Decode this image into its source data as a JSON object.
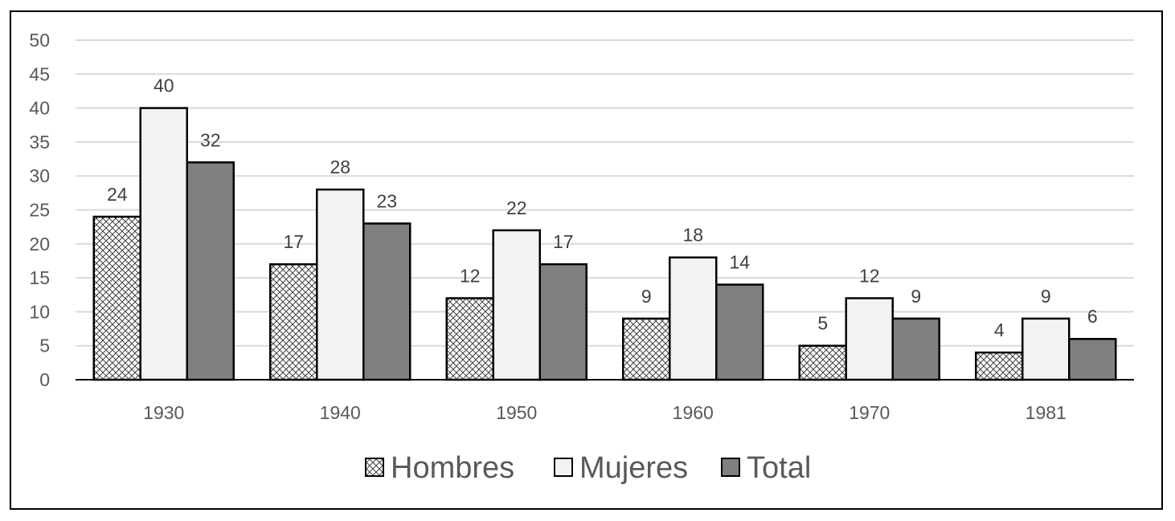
{
  "chart_data": {
    "type": "bar",
    "categories": [
      "1930",
      "1940",
      "1950",
      "1960",
      "1970",
      "1981"
    ],
    "series": [
      {
        "name": "Hombres",
        "values": [
          24,
          17,
          12,
          9,
          5,
          4
        ],
        "fill": "hatch"
      },
      {
        "name": "Mujeres",
        "values": [
          40,
          28,
          22,
          18,
          12,
          9
        ],
        "fill": "#f2f2f2"
      },
      {
        "name": "Total",
        "values": [
          32,
          23,
          17,
          14,
          9,
          6
        ],
        "fill": "#808080"
      }
    ],
    "ylim": [
      0,
      50
    ],
    "yticks": [
      0,
      5,
      10,
      15,
      20,
      25,
      30,
      35,
      40,
      45,
      50
    ],
    "grid": true,
    "legend_position": "bottom",
    "data_labels": true
  },
  "colors": {
    "grid": "#d9d9d9",
    "axis": "#000000",
    "bar_outline": "#000000",
    "hatch_background": "#ffffff",
    "hatch_line": "#404040"
  }
}
